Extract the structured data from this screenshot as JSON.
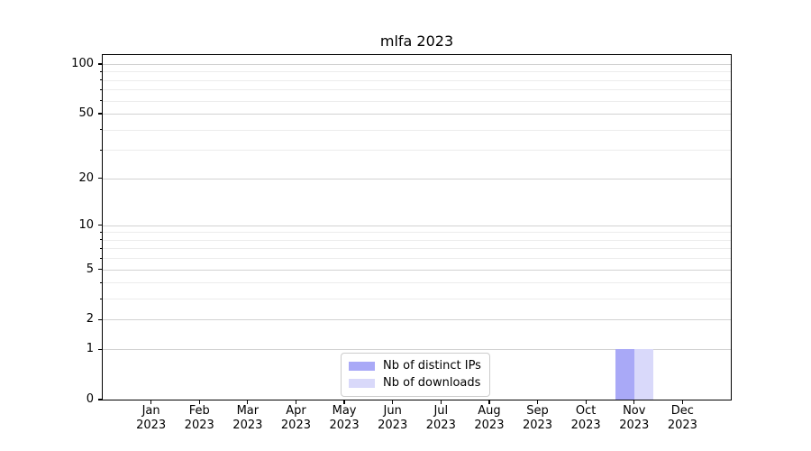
{
  "chart_data": {
    "type": "bar",
    "title": "mlfa 2023",
    "categories": [
      "Jan 2023",
      "Feb 2023",
      "Mar 2023",
      "Apr 2023",
      "May 2023",
      "Jun 2023",
      "Jul 2023",
      "Aug 2023",
      "Sep 2023",
      "Oct 2023",
      "Nov 2023",
      "Dec 2023"
    ],
    "series": [
      {
        "name": "Nb of distinct IPs",
        "color": "#a9a9f7",
        "values": [
          0,
          0,
          0,
          0,
          0,
          0,
          0,
          0,
          0,
          0,
          1,
          0
        ]
      },
      {
        "name": "Nb of downloads",
        "color": "#d9d9fa",
        "values": [
          0,
          0,
          0,
          0,
          0,
          0,
          0,
          0,
          0,
          0,
          1,
          0
        ]
      }
    ],
    "xlabel": "",
    "ylabel": "",
    "yscale": "log1p",
    "ylim": [
      0,
      113
    ],
    "yticks_major": [
      0,
      1,
      2,
      5,
      10,
      20,
      50,
      100
    ],
    "yticks_minor": [
      3,
      4,
      6,
      7,
      8,
      9,
      30,
      40,
      60,
      70,
      80,
      90
    ],
    "grid": "horizontal",
    "legend_position": "lower center"
  },
  "colors": {
    "axis": "#000000",
    "grid_major": "#d2d2d2",
    "grid_minor": "#ececec",
    "legend_border": "#cccccc",
    "background": "#ffffff"
  }
}
